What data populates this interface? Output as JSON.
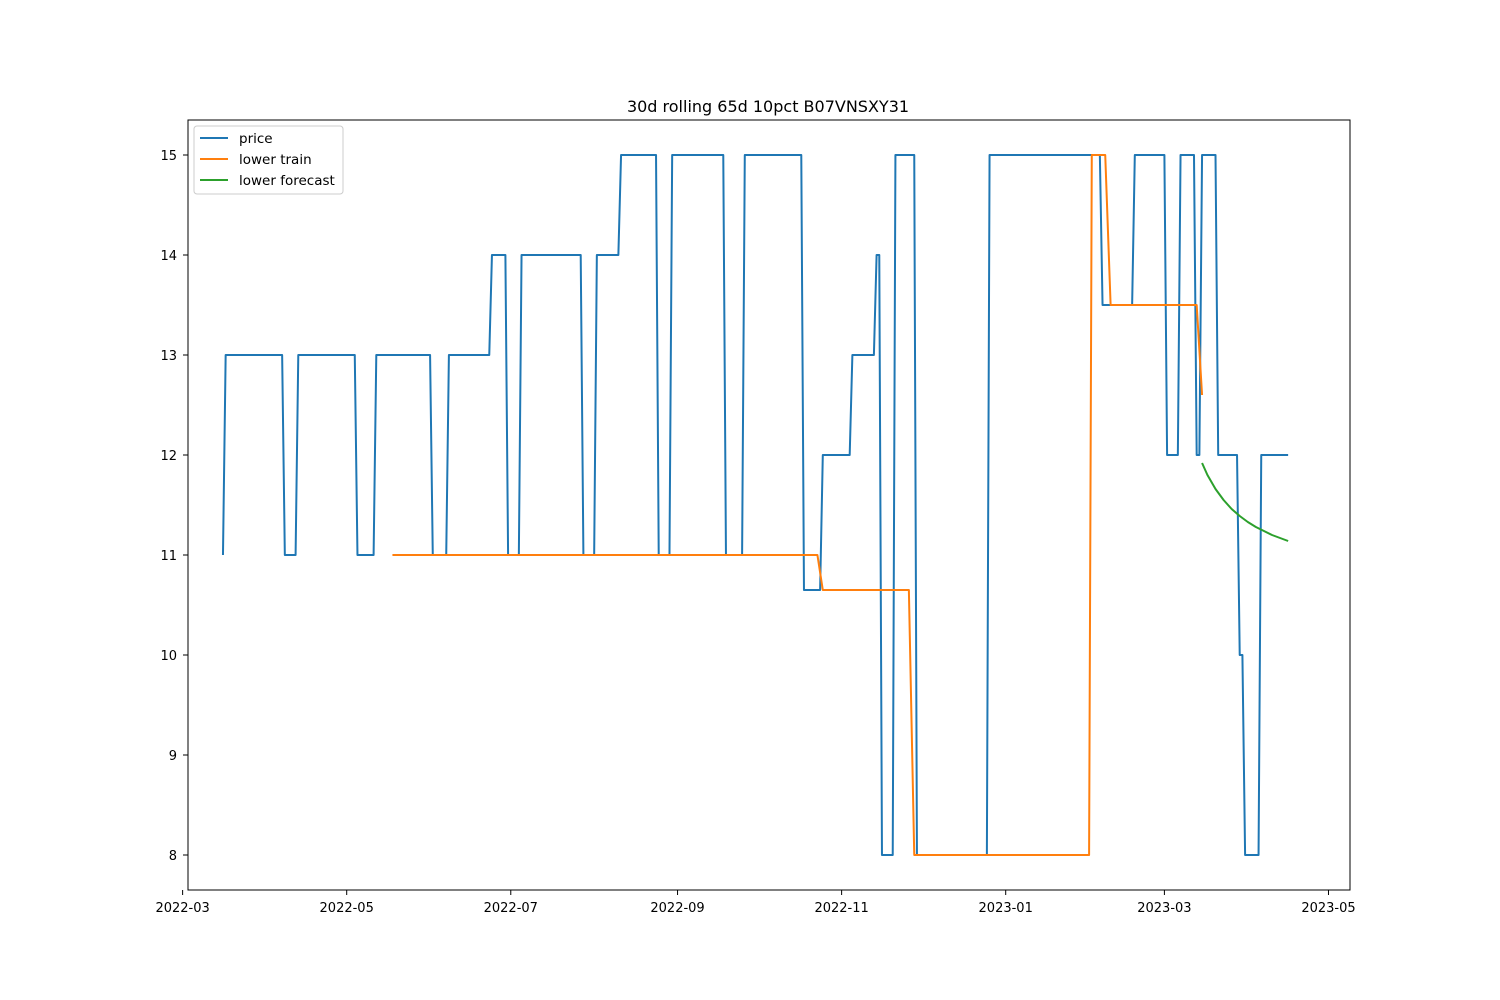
{
  "chart_data": {
    "type": "line",
    "title": "30d rolling 65d 10pct B07VNSXY31",
    "xlabel": "",
    "ylabel": "",
    "x_axis_type": "date",
    "xlim": [
      "2022-03-03",
      "2023-05-09"
    ],
    "ylim": [
      7.65,
      15.35
    ],
    "x_ticks": [
      "2022-03",
      "2022-05",
      "2022-07",
      "2022-09",
      "2022-11",
      "2023-01",
      "2023-03",
      "2023-05"
    ],
    "y_ticks": [
      8,
      9,
      10,
      11,
      12,
      13,
      14,
      15
    ],
    "grid": false,
    "legend_position": "upper left",
    "series": [
      {
        "name": "price",
        "color": "#1f77b4",
        "x": [
          "2022-03-16",
          "2022-03-17",
          "2022-04-07",
          "2022-04-08",
          "2022-04-12",
          "2022-04-13",
          "2022-05-04",
          "2022-05-05",
          "2022-05-11",
          "2022-05-12",
          "2022-06-01",
          "2022-06-02",
          "2022-06-07",
          "2022-06-08",
          "2022-06-23",
          "2022-06-24",
          "2022-06-29",
          "2022-06-30",
          "2022-07-04",
          "2022-07-05",
          "2022-07-27",
          "2022-07-28",
          "2022-08-01",
          "2022-08-02",
          "2022-08-10",
          "2022-08-11",
          "2022-08-24",
          "2022-08-25",
          "2022-08-29",
          "2022-08-30",
          "2022-09-18",
          "2022-09-19",
          "2022-09-25",
          "2022-09-26",
          "2022-10-17",
          "2022-10-18",
          "2022-10-24",
          "2022-10-25",
          "2022-11-04",
          "2022-11-05",
          "2022-11-13",
          "2022-11-14",
          "2022-11-15",
          "2022-11-16",
          "2022-11-20",
          "2022-11-21",
          "2022-11-28",
          "2022-11-29",
          "2022-12-25",
          "2022-12-26",
          "2022-12-30",
          "2022-12-31",
          "2023-02-05",
          "2023-02-06",
          "2023-02-17",
          "2023-02-18",
          "2023-03-01",
          "2023-03-02",
          "2023-03-06",
          "2023-03-07",
          "2023-03-12",
          "2023-03-13",
          "2023-03-14",
          "2023-03-15",
          "2023-03-20",
          "2023-03-21",
          "2023-03-28",
          "2023-03-29",
          "2023-03-30",
          "2023-03-31",
          "2023-04-05",
          "2023-04-06",
          "2023-04-16"
        ],
        "values": [
          11,
          13,
          13,
          11,
          11,
          13,
          13,
          11,
          11,
          13,
          13,
          11,
          11,
          13,
          13,
          14,
          14,
          11,
          11,
          14,
          14,
          11,
          11,
          14,
          14,
          15,
          15,
          11,
          11,
          15,
          15,
          11,
          11,
          15,
          15,
          10.65,
          10.65,
          12,
          12,
          13,
          13,
          14,
          14,
          8,
          8,
          15,
          15,
          8,
          8,
          15,
          15,
          15,
          15,
          13.5,
          13.5,
          15,
          15,
          12,
          12,
          15,
          15,
          12,
          12,
          15,
          15,
          12,
          12,
          10,
          10,
          8,
          8,
          12,
          12
        ]
      },
      {
        "name": "lower train",
        "color": "#ff7f0e",
        "x": [
          "2022-05-18",
          "2022-10-23",
          "2022-10-25",
          "2022-11-26",
          "2022-11-28",
          "2023-02-01",
          "2023-02-02",
          "2023-02-07",
          "2023-02-09",
          "2023-03-13",
          "2023-03-15"
        ],
        "values": [
          11,
          11,
          10.65,
          10.65,
          8,
          8,
          15,
          15,
          13.5,
          13.5,
          12.6
        ]
      },
      {
        "name": "lower forecast",
        "color": "#2ca02c",
        "x": [
          "2023-03-15",
          "2023-03-17",
          "2023-03-20",
          "2023-03-23",
          "2023-03-26",
          "2023-03-29",
          "2023-04-01",
          "2023-04-04",
          "2023-04-07",
          "2023-04-10",
          "2023-04-13",
          "2023-04-16"
        ],
        "values": [
          11.92,
          11.8,
          11.66,
          11.55,
          11.46,
          11.39,
          11.33,
          11.28,
          11.24,
          11.2,
          11.17,
          11.14
        ]
      }
    ]
  }
}
